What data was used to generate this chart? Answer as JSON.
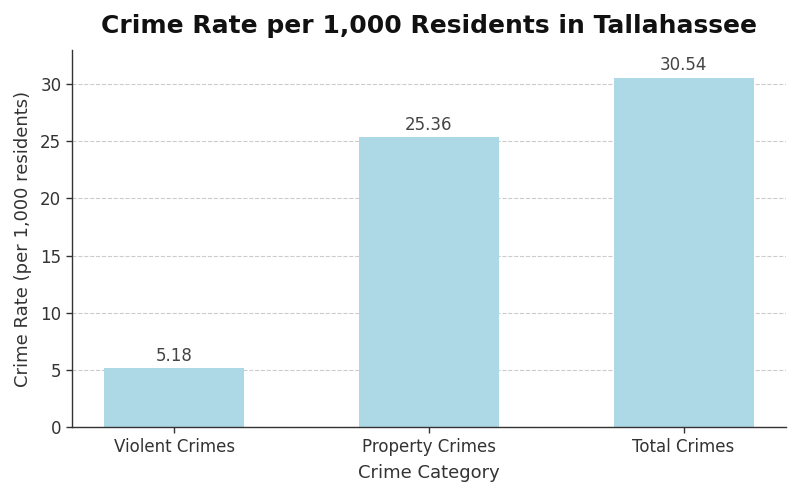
{
  "title": "Crime Rate per 1,000 Residents in Tallahassee",
  "categories": [
    "Violent Crimes",
    "Property Crimes",
    "Total Crimes"
  ],
  "values": [
    5.18,
    25.36,
    30.54
  ],
  "bar_color": "#ADD8E6",
  "bar_edgecolor": "none",
  "xlabel": "Crime Category",
  "ylabel": "Crime Rate (per 1,000 residents)",
  "ylim": [
    0,
    33
  ],
  "yticks": [
    0,
    5,
    10,
    15,
    20,
    25,
    30
  ],
  "title_fontsize": 18,
  "label_fontsize": 13,
  "tick_fontsize": 12,
  "annotation_fontsize": 12,
  "background_color": "#ffffff",
  "grid_color": "#aaaaaa",
  "grid_style": "--",
  "grid_alpha": 0.6,
  "bar_width": 0.55
}
